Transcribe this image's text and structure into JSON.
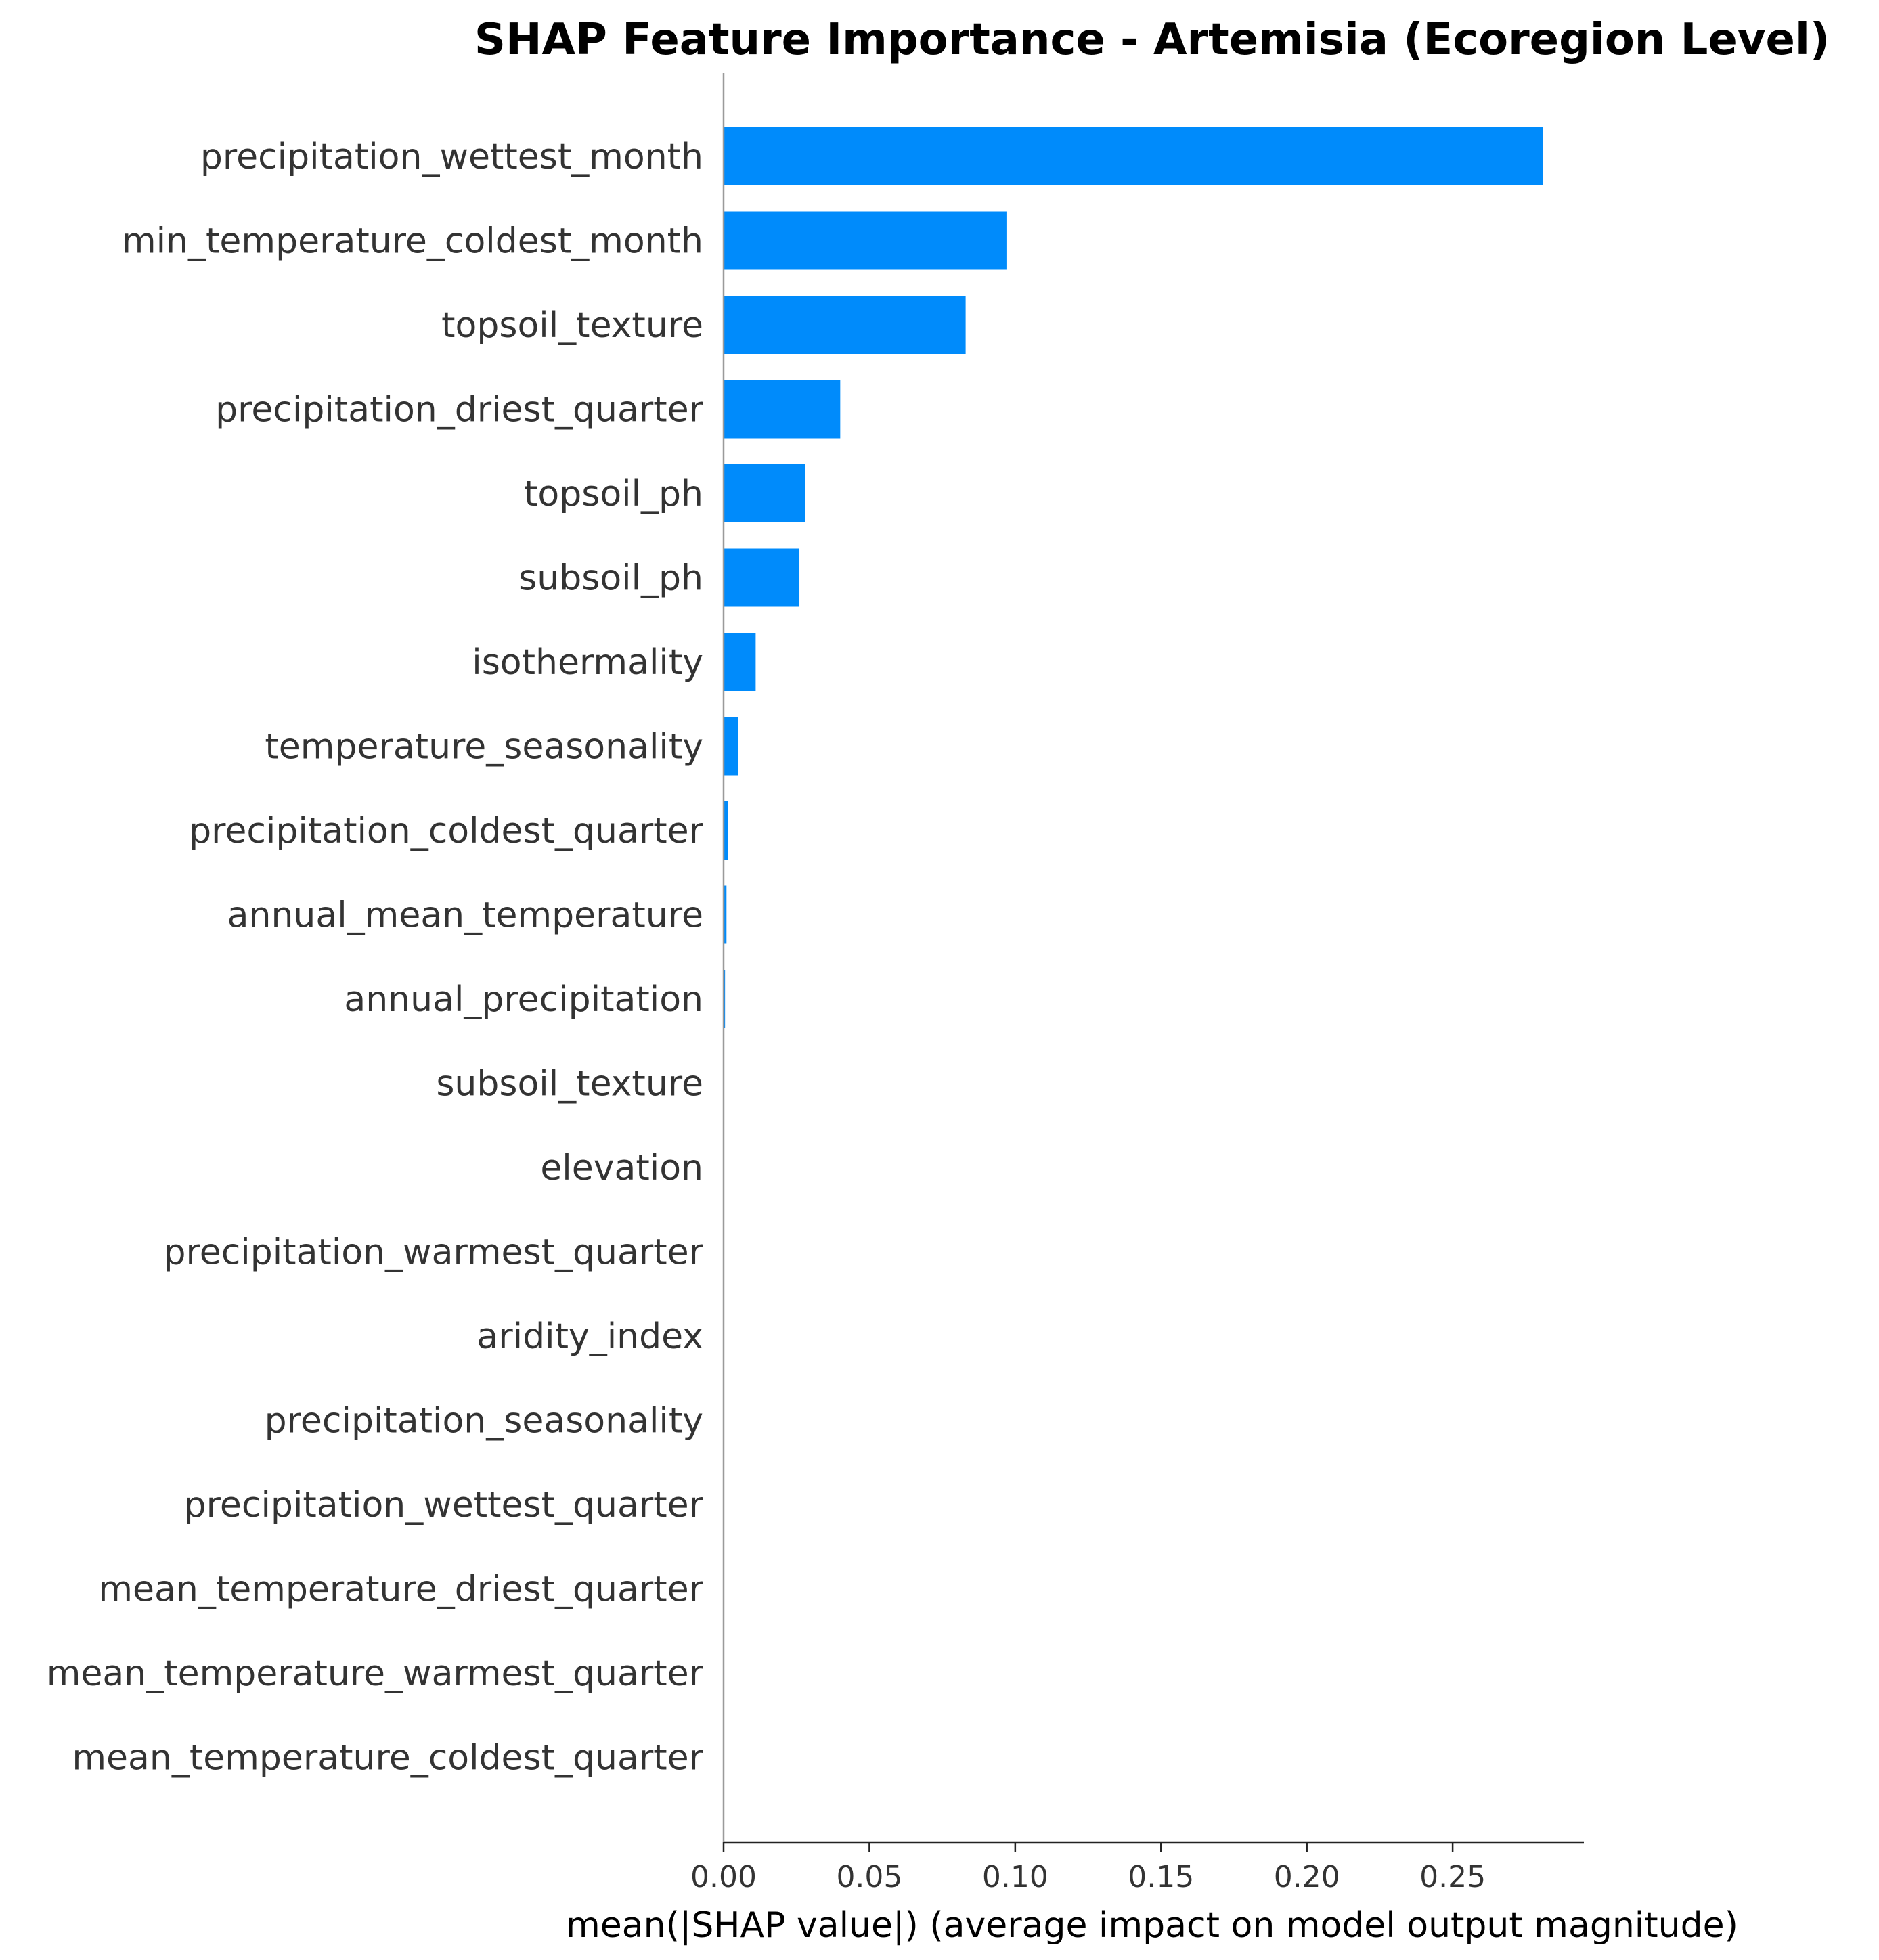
{
  "chart_data": {
    "type": "bar",
    "orientation": "horizontal",
    "title": "SHAP Feature Importance - Artemisia (Ecoregion Level)",
    "xlabel": "mean(|SHAP value|) (average impact on model output magnitude)",
    "ylabel": "",
    "xlim": [
      0,
      0.295
    ],
    "xticks": [
      0.0,
      0.05,
      0.1,
      0.15,
      0.2,
      0.25
    ],
    "xtick_labels": [
      "0.00",
      "0.05",
      "0.10",
      "0.15",
      "0.20",
      "0.25"
    ],
    "bar_color": "#008bfb",
    "grid": false,
    "categories": [
      "precipitation_wettest_month",
      "min_temperature_coldest_month",
      "topsoil_texture",
      "precipitation_driest_quarter",
      "topsoil_ph",
      "subsoil_ph",
      "isothermality",
      "temperature_seasonality",
      "precipitation_coldest_quarter",
      "annual_mean_temperature",
      "annual_precipitation",
      "subsoil_texture",
      "elevation",
      "precipitation_warmest_quarter",
      "aridity_index",
      "precipitation_seasonality",
      "precipitation_wettest_quarter",
      "mean_temperature_driest_quarter",
      "mean_temperature_warmest_quarter",
      "mean_temperature_coldest_quarter"
    ],
    "values": [
      0.281,
      0.097,
      0.083,
      0.04,
      0.028,
      0.026,
      0.011,
      0.005,
      0.0015,
      0.001,
      0.0005,
      0,
      0,
      0,
      0,
      0,
      0,
      0,
      0,
      0
    ]
  }
}
